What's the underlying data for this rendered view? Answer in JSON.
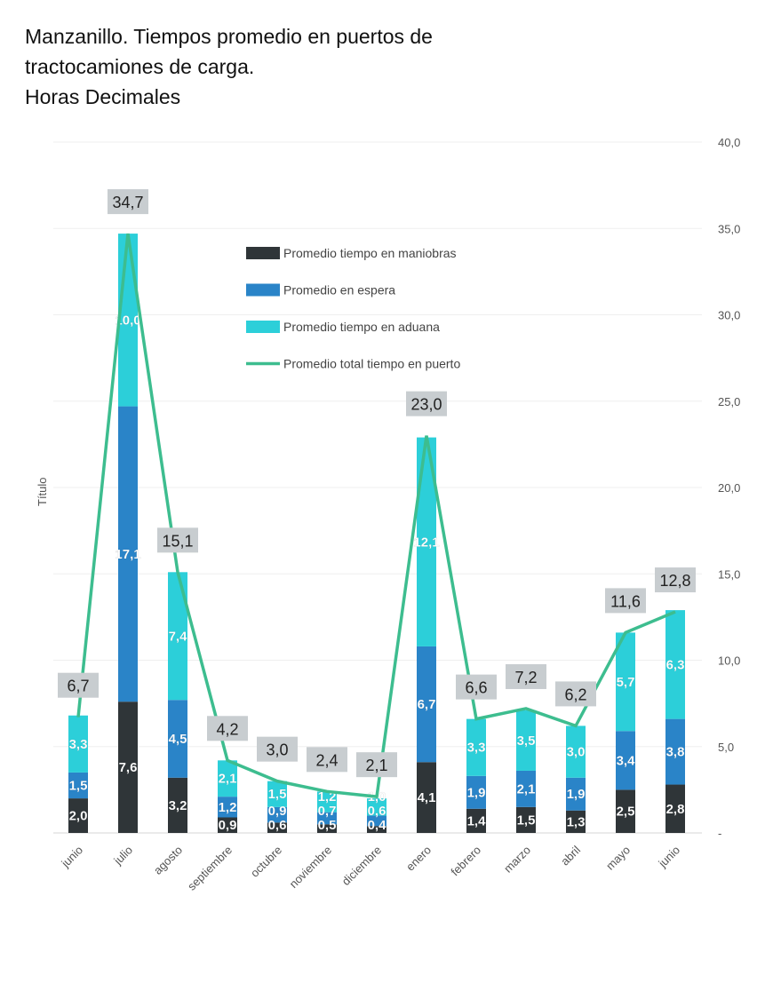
{
  "chart_data": {
    "type": "bar",
    "stacked": true,
    "title_lines": [
      "Manzanillo. Tiempos promedio en puertos de",
      "tractocamiones de carga.",
      "Horas Decimales"
    ],
    "ylabel": "Título",
    "ylim": [
      0,
      40
    ],
    "yticks": [
      "-",
      "5,0",
      "10,0",
      "15,0",
      "20,0",
      "25,0",
      "30,0",
      "35,0",
      "40,0"
    ],
    "y_axis_side": "right",
    "grid": true,
    "legend_placement": "top-center",
    "categories": [
      "junio",
      "julio",
      "agosto",
      "septiembre",
      "octubre",
      "noviembre",
      "diciembre",
      "enero",
      "febrero",
      "marzo",
      "abril",
      "mayo",
      "junio"
    ],
    "series": [
      {
        "name": "Promedio tiempo en maniobras",
        "type": "bar",
        "color": "#2f3538",
        "values": [
          2.0,
          7.6,
          3.2,
          0.9,
          0.6,
          0.5,
          0.4,
          4.1,
          1.4,
          1.5,
          1.3,
          2.5,
          2.8
        ]
      },
      {
        "name": "Promedio en espera",
        "type": "bar",
        "color": "#2a84c8",
        "values": [
          1.5,
          17.1,
          4.5,
          1.2,
          0.9,
          0.7,
          0.6,
          6.7,
          1.9,
          2.1,
          1.9,
          3.4,
          3.8
        ]
      },
      {
        "name": "Promedio tiempo en aduana",
        "type": "bar",
        "color": "#2ccfd9",
        "values": [
          3.3,
          10.0,
          7.4,
          2.1,
          1.5,
          1.2,
          1.0,
          12.1,
          3.3,
          3.5,
          3.0,
          5.7,
          6.3
        ]
      },
      {
        "name": "Promedio total tiempo en puerto",
        "type": "line",
        "color": "#3dbd8f",
        "values": [
          6.7,
          34.7,
          15.1,
          4.2,
          3.0,
          2.4,
          2.1,
          23.0,
          6.6,
          7.2,
          6.2,
          11.6,
          12.8
        ]
      }
    ]
  }
}
